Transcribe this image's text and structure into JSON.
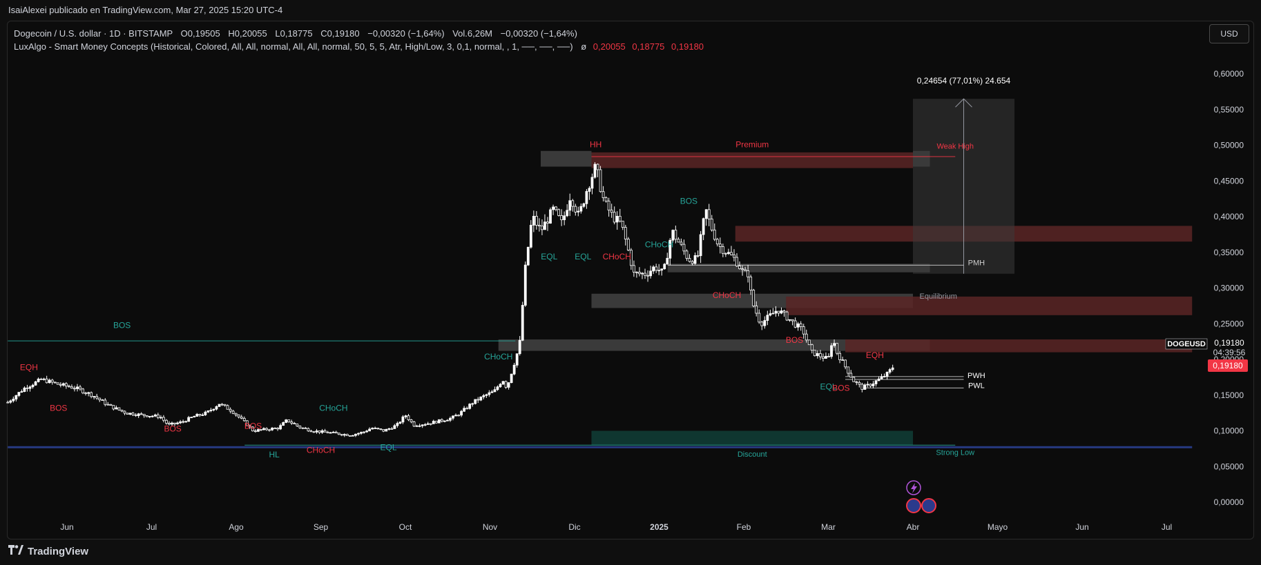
{
  "topbar": {
    "author_line": "IsaiAlexei publicado en TradingView.com, Mar 27, 2025 15:20 UTC-4"
  },
  "legend": {
    "symbol": "Dogecoin / U.S. dollar · 1D · BITSTAMP",
    "o_key": "O",
    "o_val": "0,19505",
    "h_key": "H",
    "h_val": "0,20055",
    "l_key": "L",
    "l_val": "0,18775",
    "c_key": "C",
    "c_val": "0,19180",
    "change": "−0,00320 (−1,64%)",
    "vol": "Vol.6,26M",
    "vol_change": "−0,00320 (−1,64%)",
    "indicator": "LuxAlgo - Smart Money Concepts (Historical, Colored, All, All, normal, All, All, normal, 50, 5, 5, Atr, High/Low, 3, 0,1, normal, , 1, ──, ──, ──)",
    "ind_symbol": "ø",
    "ind_v1": "0,20055",
    "ind_v2": "0,18775",
    "ind_v3": "0,19180"
  },
  "currency_button": "USD",
  "brand": "TradingView",
  "colors": {
    "background": "#0c0c0c",
    "candle_body": "#ffffff",
    "bull_label": "#26a69a",
    "bear_label": "#f23645",
    "premium_zone": "#5a2626",
    "neutral_zone": "#4a4a4a",
    "discount_zone": "#0f3b34",
    "last_price": "#f23645",
    "support_line": "#2a3f8f"
  },
  "chart_data": {
    "type": "candlestick",
    "symbol": "DOGEUSD",
    "timeframe": "1D",
    "y_ticks": [
      "0,60000",
      "0,55000",
      "0,50000",
      "0,45000",
      "0,40000",
      "0,35000",
      "0,30000",
      "0,25000",
      "0,20000",
      "0,15000",
      "0,10000",
      "0,05000",
      "0,00000"
    ],
    "ylim": [
      -0.01,
      0.63
    ],
    "x_ticks": [
      {
        "label": "Jun",
        "month": 0
      },
      {
        "label": "Jul",
        "month": 1
      },
      {
        "label": "Ago",
        "month": 2
      },
      {
        "label": "Sep",
        "month": 3
      },
      {
        "label": "Oct",
        "month": 4
      },
      {
        "label": "Nov",
        "month": 5
      },
      {
        "label": "Dic",
        "month": 6
      },
      {
        "label": "2025",
        "month": 7,
        "bold": true
      },
      {
        "label": "Feb",
        "month": 8
      },
      {
        "label": "Mar",
        "month": 9
      },
      {
        "label": "Abr",
        "month": 10
      },
      {
        "label": "Mayo",
        "month": 11
      },
      {
        "label": "Jun",
        "month": 12
      },
      {
        "label": "Jul",
        "month": 13
      }
    ],
    "close_path": [
      [
        -0.7,
        0.14
      ],
      [
        -0.5,
        0.16
      ],
      [
        -0.3,
        0.172
      ],
      [
        -0.1,
        0.165
      ],
      [
        0.1,
        0.16
      ],
      [
        0.3,
        0.15
      ],
      [
        0.5,
        0.135
      ],
      [
        0.7,
        0.125
      ],
      [
        0.9,
        0.122
      ],
      [
        1.1,
        0.12
      ],
      [
        1.2,
        0.108
      ],
      [
        1.35,
        0.112
      ],
      [
        1.5,
        0.12
      ],
      [
        1.65,
        0.125
      ],
      [
        1.8,
        0.138
      ],
      [
        1.95,
        0.128
      ],
      [
        2.1,
        0.112
      ],
      [
        2.2,
        0.1
      ],
      [
        2.35,
        0.102
      ],
      [
        2.5,
        0.104
      ],
      [
        2.6,
        0.115
      ],
      [
        2.75,
        0.105
      ],
      [
        2.9,
        0.1
      ],
      [
        3.05,
        0.098
      ],
      [
        3.2,
        0.096
      ],
      [
        3.35,
        0.094
      ],
      [
        3.5,
        0.098
      ],
      [
        3.6,
        0.104
      ],
      [
        3.75,
        0.1
      ],
      [
        3.9,
        0.108
      ],
      [
        4.0,
        0.122
      ],
      [
        4.1,
        0.108
      ],
      [
        4.25,
        0.11
      ],
      [
        4.45,
        0.115
      ],
      [
        4.55,
        0.118
      ],
      [
        4.65,
        0.125
      ],
      [
        4.8,
        0.14
      ],
      [
        4.95,
        0.15
      ],
      [
        5.05,
        0.155
      ],
      [
        5.15,
        0.172
      ],
      [
        5.2,
        0.16
      ],
      [
        5.3,
        0.2
      ],
      [
        5.35,
        0.22
      ],
      [
        5.42,
        0.33
      ],
      [
        5.5,
        0.4
      ],
      [
        5.6,
        0.38
      ],
      [
        5.75,
        0.41
      ],
      [
        5.85,
        0.39
      ],
      [
        5.95,
        0.43
      ],
      [
        6.05,
        0.4
      ],
      [
        6.15,
        0.44
      ],
      [
        6.25,
        0.47
      ],
      [
        6.35,
        0.42
      ],
      [
        6.45,
        0.4
      ],
      [
        6.55,
        0.39
      ],
      [
        6.62,
        0.36
      ],
      [
        6.7,
        0.32
      ],
      [
        6.85,
        0.32
      ],
      [
        6.95,
        0.33
      ],
      [
        7.05,
        0.32
      ],
      [
        7.15,
        0.38
      ],
      [
        7.25,
        0.36
      ],
      [
        7.35,
        0.34
      ],
      [
        7.45,
        0.34
      ],
      [
        7.55,
        0.41
      ],
      [
        7.6,
        0.39
      ],
      [
        7.7,
        0.36
      ],
      [
        7.8,
        0.35
      ],
      [
        7.9,
        0.34
      ],
      [
        8.0,
        0.32
      ],
      [
        8.05,
        0.32
      ],
      [
        8.1,
        0.28
      ],
      [
        8.2,
        0.25
      ],
      [
        8.3,
        0.26
      ],
      [
        8.4,
        0.27
      ],
      [
        8.5,
        0.26
      ],
      [
        8.6,
        0.25
      ],
      [
        8.7,
        0.24
      ],
      [
        8.8,
        0.21
      ],
      [
        8.9,
        0.205
      ],
      [
        9.0,
        0.2
      ],
      [
        9.05,
        0.23
      ],
      [
        9.1,
        0.21
      ],
      [
        9.2,
        0.19
      ],
      [
        9.3,
        0.17
      ],
      [
        9.4,
        0.16
      ],
      [
        9.5,
        0.165
      ],
      [
        9.6,
        0.172
      ],
      [
        9.7,
        0.18
      ],
      [
        9.78,
        0.192
      ]
    ],
    "last_price": {
      "value": 0.1918,
      "label": "0,19180",
      "time_label": "04:39:56",
      "symbol": "DOGEUSD"
    },
    "measure": {
      "label": "0,24654 (77,01%) 24.654",
      "from": 0.32,
      "to": 0.565,
      "month_start": 10.0,
      "month_end": 11.2
    },
    "zones": [
      {
        "name": "premium-band",
        "kind": "premium",
        "y0": 0.468,
        "y1": 0.49,
        "m0": 6.2,
        "m1": 10.0
      },
      {
        "name": "hh-box",
        "kind": "neutral",
        "y0": 0.47,
        "y1": 0.492,
        "m0": 5.6,
        "m1": 6.2
      },
      {
        "name": "hh-box-right",
        "kind": "neutral",
        "y0": 0.47,
        "y1": 0.492,
        "m0": 10.0,
        "m1": 10.2
      },
      {
        "name": "bear-ob-1",
        "kind": "premium",
        "y0": 0.365,
        "y1": 0.387,
        "m0": 7.9,
        "m1": 13.3
      },
      {
        "name": "pmh-box",
        "kind": "neutral",
        "y0": 0.322,
        "y1": 0.334,
        "m0": 7.1,
        "m1": 10.2
      },
      {
        "name": "equilibrium-band",
        "kind": "neutral",
        "y0": 0.272,
        "y1": 0.292,
        "m0": 6.2,
        "m1": 10.0
      },
      {
        "name": "bear-ob-2",
        "kind": "premium",
        "y0": 0.262,
        "y1": 0.288,
        "m0": 8.5,
        "m1": 13.3
      },
      {
        "name": "ob-mid",
        "kind": "neutral",
        "y0": 0.212,
        "y1": 0.228,
        "m0": 5.1,
        "m1": 10.2
      },
      {
        "name": "bear-ob-3",
        "kind": "premium",
        "y0": 0.21,
        "y1": 0.228,
        "m0": 9.2,
        "m1": 13.3
      },
      {
        "name": "discount-band",
        "kind": "discount",
        "y0": 0.08,
        "y1": 0.1,
        "m0": 6.2,
        "m1": 10.0
      }
    ],
    "levels": [
      {
        "name": "support-line",
        "y": 0.077,
        "m0": -0.7,
        "m1": 13.3,
        "color": "#2a3f8f",
        "width": 3
      },
      {
        "name": "strong-low-line",
        "y": 0.08,
        "m0": 2.1,
        "m1": 10.5,
        "color": "#26a69a",
        "width": 1
      },
      {
        "name": "bos-line-left",
        "y": 0.226,
        "m0": -0.7,
        "m1": 5.3,
        "color": "#26a69a",
        "width": 1
      },
      {
        "name": "weak-high-line",
        "y": 0.484,
        "m0": 6.2,
        "m1": 10.5,
        "color": "#f23645",
        "width": 1
      },
      {
        "name": "pmh-line",
        "y": 0.332,
        "m0": 7.1,
        "m1": 10.6,
        "color": "#cccccc",
        "width": 1
      },
      {
        "name": "pwh-line",
        "y": 0.172,
        "m0": 9.2,
        "m1": 10.6,
        "color": "#cccccc",
        "width": 1
      },
      {
        "name": "pwh2-line",
        "y": 0.176,
        "m0": 9.2,
        "m1": 10.6,
        "color": "#cccccc",
        "width": 1
      },
      {
        "name": "pwl-line",
        "y": 0.16,
        "m0": 9.4,
        "m1": 10.6,
        "color": "#cccccc",
        "width": 1
      }
    ],
    "annotations": [
      {
        "text": "EQH",
        "m": -0.45,
        "y": 0.185,
        "color": "#f23645"
      },
      {
        "text": "BOS",
        "m": -0.1,
        "y": 0.128,
        "color": "#f23645"
      },
      {
        "text": "BOS",
        "m": 1.25,
        "y": 0.099,
        "color": "#f23645"
      },
      {
        "text": "BOS",
        "m": 0.65,
        "y": 0.244,
        "color": "#26a69a"
      },
      {
        "text": "BOS",
        "m": 2.2,
        "y": 0.103,
        "color": "#f23645"
      },
      {
        "text": "CHoCH",
        "m": 3.15,
        "y": 0.128,
        "color": "#26a69a"
      },
      {
        "text": "HL",
        "m": 2.45,
        "y": 0.063,
        "color": "#26a69a"
      },
      {
        "text": "CHoCH",
        "m": 3.0,
        "y": 0.069,
        "color": "#f23645"
      },
      {
        "text": "EQL",
        "m": 3.8,
        "y": 0.073,
        "color": "#26a69a"
      },
      {
        "text": "CHoCH",
        "m": 5.1,
        "y": 0.2,
        "color": "#26a69a"
      },
      {
        "text": "EQL",
        "m": 5.7,
        "y": 0.34,
        "color": "#26a69a"
      },
      {
        "text": "EQL",
        "m": 6.1,
        "y": 0.34,
        "color": "#26a69a"
      },
      {
        "text": "CHoCH",
        "m": 6.5,
        "y": 0.34,
        "color": "#f23645"
      },
      {
        "text": "HH",
        "m": 6.25,
        "y": 0.497,
        "color": "#f23645"
      },
      {
        "text": "Premium",
        "m": 8.1,
        "y": 0.497,
        "color": "#f23645"
      },
      {
        "text": "Weak High",
        "m": 10.5,
        "y": 0.495,
        "color": "#f23645",
        "small": true
      },
      {
        "text": "CHoCH",
        "m": 7.0,
        "y": 0.357,
        "color": "#26a69a"
      },
      {
        "text": "BOS",
        "m": 7.35,
        "y": 0.418,
        "color": "#26a69a"
      },
      {
        "text": "CHoCH",
        "m": 7.8,
        "y": 0.286,
        "color": "#f23645"
      },
      {
        "text": "PMH",
        "m": 10.75,
        "y": 0.332,
        "color": "#cccccc",
        "small": true
      },
      {
        "text": "Equilibrium",
        "m": 10.3,
        "y": 0.285,
        "color": "#9598a1",
        "small": true
      },
      {
        "text": "BOS",
        "m": 8.6,
        "y": 0.223,
        "color": "#f23645"
      },
      {
        "text": "EQH",
        "m": 9.55,
        "y": 0.202,
        "color": "#f23645"
      },
      {
        "text": "PWH",
        "m": 10.75,
        "y": 0.174,
        "color": "#ffffff",
        "small": true
      },
      {
        "text": "PWL",
        "m": 10.75,
        "y": 0.16,
        "color": "#ffffff",
        "small": true
      },
      {
        "text": "EQL",
        "m": 9.0,
        "y": 0.158,
        "color": "#26a69a"
      },
      {
        "text": "BOS",
        "m": 9.15,
        "y": 0.156,
        "color": "#f23645"
      },
      {
        "text": "Discount",
        "m": 8.1,
        "y": 0.064,
        "color": "#26a69a",
        "small": true
      },
      {
        "text": "Strong Low",
        "m": 10.5,
        "y": 0.066,
        "color": "#26a69a",
        "small": true
      }
    ],
    "grid": false,
    "legend_position": "top-left"
  }
}
